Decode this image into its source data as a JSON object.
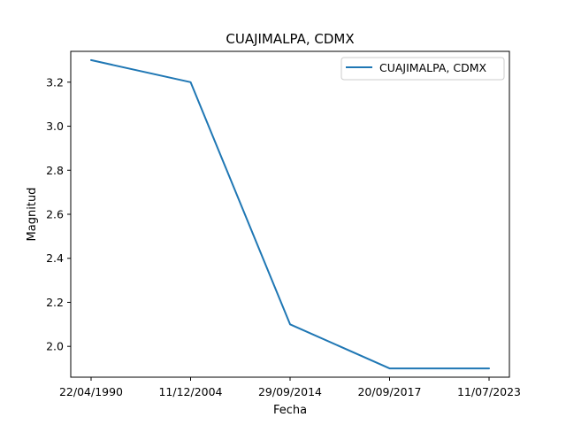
{
  "chart_data": {
    "type": "line",
    "title": "CUAJIMALPA, CDMX",
    "xlabel": "Fecha",
    "ylabel": "Magnitud",
    "categories": [
      "22/04/1990",
      "11/12/2004",
      "29/09/2014",
      "20/09/2017",
      "11/07/2023"
    ],
    "series": [
      {
        "name": "CUAJIMALPA, CDMX",
        "values": [
          3.3,
          3.2,
          2.1,
          1.9,
          1.9
        ],
        "color": "#1f77b4"
      }
    ],
    "yticks": [
      "2.0",
      "2.2",
      "2.4",
      "2.6",
      "2.8",
      "3.0",
      "3.2"
    ],
    "ylim": [
      1.86,
      3.34
    ],
    "grid": false,
    "legend": "top-right"
  }
}
